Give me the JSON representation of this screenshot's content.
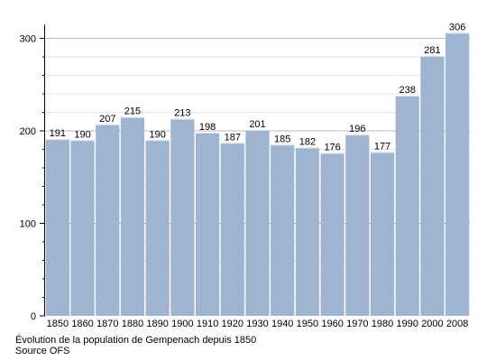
{
  "chart_data": {
    "type": "bar",
    "categories": [
      "1850",
      "1860",
      "1870",
      "1880",
      "1890",
      "1900",
      "1910",
      "1920",
      "1930",
      "1940",
      "1950",
      "1960",
      "1970",
      "1980",
      "1990",
      "2000",
      "2008"
    ],
    "values": [
      191,
      190,
      207,
      215,
      190,
      213,
      198,
      187,
      201,
      185,
      182,
      176,
      196,
      177,
      238,
      281,
      306
    ],
    "ylim": [
      0,
      310
    ],
    "yticks": [
      0,
      100,
      200,
      300
    ],
    "grid": true,
    "bar_color": "#9fb4d0",
    "grid_color": "#cccccc",
    "title": "",
    "xlabel": "",
    "ylabel": ""
  },
  "caption": {
    "line1": "Évolution de la population de Gempenach depuis 1850",
    "line2": "Source OFS"
  }
}
